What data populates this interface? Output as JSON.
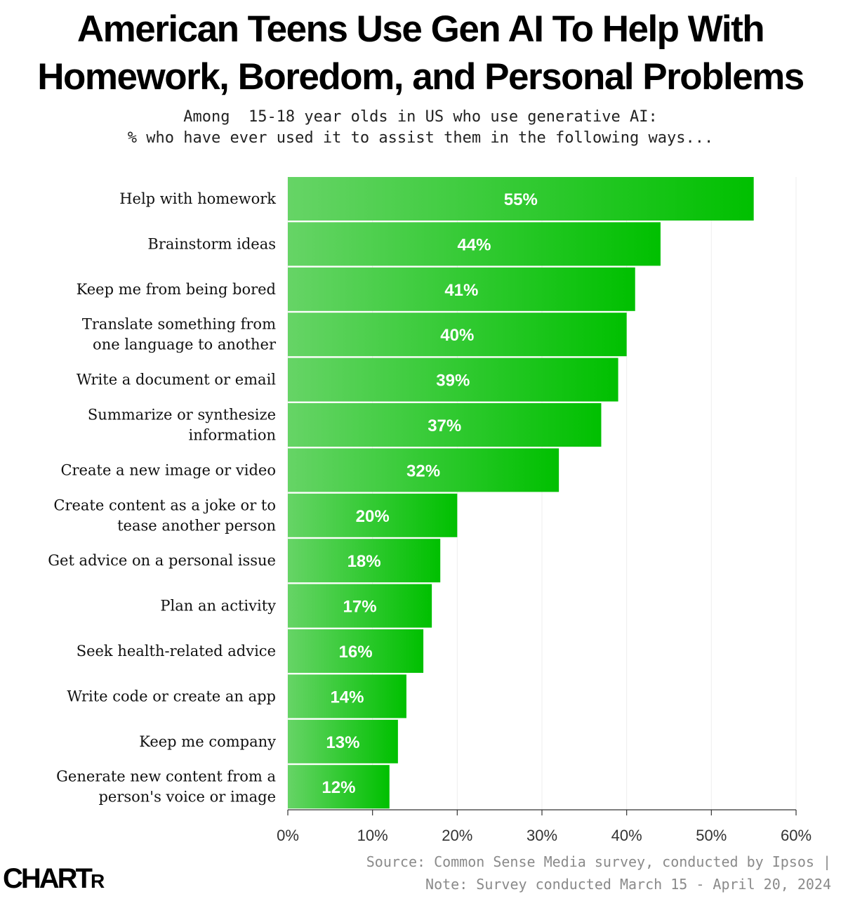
{
  "header": {
    "title_line1": "American Teens Use Gen AI To Help With",
    "title_line2": "Homework, Boredom, and Personal Problems",
    "subtitle_line1": "Among  15-18 year olds in US who use generative AI:",
    "subtitle_line2": "% who have ever used it to assist them in the following ways..."
  },
  "footer": {
    "source_line1": "Source: Common Sense Media survey, conducted by Ipsos |",
    "source_line2": "Note: Survey conducted March 15 - April 20, 2024",
    "logo_main": "CHART",
    "logo_small": "R"
  },
  "colors": {
    "bar_start": "#66d466",
    "bar_end": "#00c000",
    "grid": "#eeeeee"
  },
  "chart_data": {
    "type": "bar",
    "orientation": "horizontal",
    "categories": [
      [
        "Help with homework"
      ],
      [
        "Brainstorm ideas"
      ],
      [
        "Keep me from being bored"
      ],
      [
        "Translate something from",
        "one language to another"
      ],
      [
        "Write a document or email"
      ],
      [
        "Summarize or synthesize",
        "information"
      ],
      [
        "Create a new image or video"
      ],
      [
        "Create content as a joke or to",
        "tease another person"
      ],
      [
        "Get advice on a personal issue"
      ],
      [
        "Plan an activity"
      ],
      [
        "Seek health-related advice"
      ],
      [
        "Write code or create an app"
      ],
      [
        "Keep me company"
      ],
      [
        "Generate new content from a",
        "person's voice or image"
      ]
    ],
    "values": [
      55,
      44,
      41,
      40,
      39,
      37,
      32,
      20,
      18,
      17,
      16,
      14,
      13,
      12
    ],
    "value_labels": [
      "55%",
      "44%",
      "41%",
      "40%",
      "39%",
      "37%",
      "32%",
      "20%",
      "18%",
      "17%",
      "16%",
      "14%",
      "13%",
      "12%"
    ],
    "xlim": [
      0,
      60
    ],
    "xticks": [
      0,
      10,
      20,
      30,
      40,
      50,
      60
    ],
    "xtick_labels": [
      "0%",
      "10%",
      "20%",
      "30%",
      "40%",
      "50%",
      "60%"
    ],
    "grid": true
  }
}
